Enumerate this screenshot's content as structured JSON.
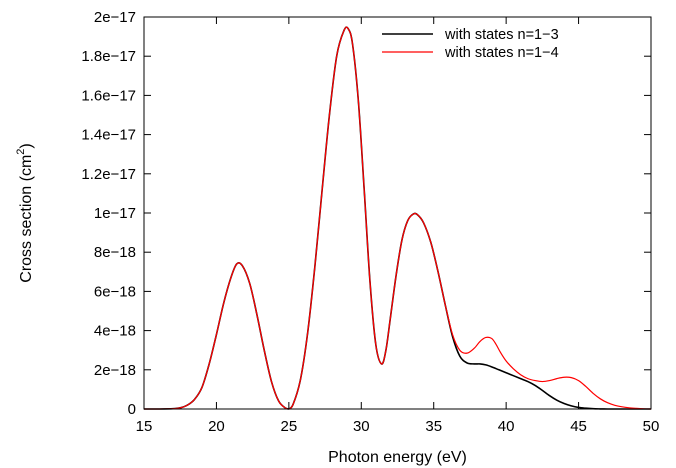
{
  "chart_data": {
    "type": "line",
    "title": "",
    "xlabel": "Photon energy (eV)",
    "ylabel": "Cross section (cm",
    "ylabel_sup": "2",
    "ylabel_close": ")",
    "xlim": [
      15,
      50
    ],
    "ylim": [
      0,
      2e-17
    ],
    "x_ticks": [
      15,
      20,
      25,
      30,
      35,
      40,
      45,
      50
    ],
    "x_tick_labels": [
      "15",
      "20",
      "25",
      "30",
      "35",
      "40",
      "45",
      "50"
    ],
    "y_ticks": [
      0,
      2e-18,
      4e-18,
      6e-18,
      8e-18,
      1e-17,
      1.2e-17,
      1.4e-17,
      1.6e-17,
      1.8e-17,
      2e-17
    ],
    "y_tick_labels": [
      "0",
      "2e−18",
      "4e−18",
      "6e−18",
      "8e−18",
      "1e−17",
      "1.2e−17",
      "1.4e−17",
      "1.6e−17",
      "1.8e−17",
      "2e−17"
    ],
    "grid": false,
    "legend_position": "top-right",
    "series": [
      {
        "name": "with states n=1−3",
        "color": "#000000",
        "x": [
          15,
          16,
          17,
          17.5,
          18,
          18.5,
          19,
          19.5,
          20,
          20.5,
          21,
          21.4,
          21.8,
          22.3,
          22.8,
          23.3,
          23.8,
          24.3,
          24.8,
          25,
          25.3,
          25.8,
          26.3,
          26.8,
          27.3,
          27.8,
          28.3,
          28.8,
          29.1,
          29.4,
          29.8,
          30.2,
          30.6,
          31.0,
          31.4,
          31.7,
          32.0,
          32.4,
          32.8,
          33.2,
          33.6,
          33.9,
          34.3,
          34.8,
          35.3,
          35.8,
          36.3,
          36.8,
          37.3,
          37.8,
          38.2,
          38.6,
          39.0,
          39.5,
          40.0,
          40.5,
          41.0,
          41.5,
          42.0,
          42.5,
          43.0,
          43.5,
          44.0,
          44.5,
          45.0,
          45.5,
          46.0,
          46.5,
          47.0,
          47.5,
          48.0,
          49.0,
          50.0
        ],
        "y": [
          0,
          0,
          1.5e-20,
          6e-20,
          2e-19,
          5e-19,
          1.1e-18,
          2.3e-18,
          3.8e-18,
          5.4e-18,
          6.7e-18,
          7.4e-18,
          7.3e-18,
          6.4e-18,
          4.8e-18,
          3e-18,
          1.4e-18,
          4e-19,
          3e-20,
          0,
          2.5e-19,
          1.5e-18,
          3.9e-18,
          7.3e-18,
          1.12e-17,
          1.5e-17,
          1.8e-17,
          1.93e-17,
          1.94e-17,
          1.86e-17,
          1.57e-17,
          1.12e-17,
          6.5e-18,
          3.3e-18,
          2.3e-18,
          3e-18,
          4.6e-18,
          6.8e-18,
          8.6e-18,
          9.6e-18,
          9.95e-18,
          9.9e-18,
          9.5e-18,
          8.5e-18,
          7e-18,
          5.3e-18,
          3.7e-18,
          2.7e-18,
          2.35e-18,
          2.3e-18,
          2.3e-18,
          2.25e-18,
          2.15e-18,
          2e-18,
          1.85e-18,
          1.7e-18,
          1.55e-18,
          1.4e-18,
          1.2e-18,
          9.5e-19,
          6.8e-19,
          4.5e-19,
          2.8e-19,
          1.6e-19,
          8e-20,
          4e-20,
          1.5e-20,
          5e-21,
          0,
          0,
          0,
          0,
          0
        ]
      },
      {
        "name": "with states n=1−4",
        "color": "#ff0000",
        "x": [
          15,
          16,
          17,
          17.5,
          18,
          18.5,
          19,
          19.5,
          20,
          20.5,
          21,
          21.4,
          21.8,
          22.3,
          22.8,
          23.3,
          23.8,
          24.3,
          24.8,
          25,
          25.3,
          25.8,
          26.3,
          26.8,
          27.3,
          27.8,
          28.3,
          28.8,
          29.1,
          29.4,
          29.8,
          30.2,
          30.6,
          31.0,
          31.4,
          31.7,
          32.0,
          32.4,
          32.8,
          33.2,
          33.6,
          33.9,
          34.3,
          34.8,
          35.3,
          35.8,
          36.3,
          36.8,
          37.3,
          37.8,
          38.2,
          38.6,
          39.0,
          39.3,
          39.6,
          40.0,
          40.5,
          41.0,
          41.5,
          42.0,
          42.5,
          43.0,
          43.5,
          44.0,
          44.5,
          45.0,
          45.5,
          46.0,
          46.5,
          47.0,
          47.5,
          48.0,
          48.5,
          49.0,
          49.5,
          50.0
        ],
        "y": [
          0,
          0,
          1.5e-20,
          6e-20,
          2e-19,
          5e-19,
          1.1e-18,
          2.3e-18,
          3.8e-18,
          5.4e-18,
          6.7e-18,
          7.4e-18,
          7.3e-18,
          6.4e-18,
          4.8e-18,
          3e-18,
          1.4e-18,
          4e-19,
          3e-20,
          0,
          2.5e-19,
          1.5e-18,
          3.9e-18,
          7.3e-18,
          1.12e-17,
          1.5e-17,
          1.8e-17,
          1.93e-17,
          1.94e-17,
          1.86e-17,
          1.57e-17,
          1.12e-17,
          6.5e-18,
          3.3e-18,
          2.3e-18,
          3e-18,
          4.6e-18,
          6.8e-18,
          8.6e-18,
          9.6e-18,
          9.95e-18,
          9.9e-18,
          9.5e-18,
          8.5e-18,
          7e-18,
          5.3e-18,
          3.8e-18,
          3e-18,
          2.85e-18,
          3.1e-18,
          3.45e-18,
          3.65e-18,
          3.6e-18,
          3.3e-18,
          2.9e-18,
          2.45e-18,
          2.05e-18,
          1.75e-18,
          1.55e-18,
          1.45e-18,
          1.4e-18,
          1.45e-18,
          1.55e-18,
          1.62e-18,
          1.6e-18,
          1.45e-18,
          1.15e-18,
          8e-19,
          5.2e-19,
          3.2e-19,
          1.9e-19,
          1.1e-19,
          6e-20,
          3e-20,
          1e-20,
          0
        ]
      }
    ]
  }
}
